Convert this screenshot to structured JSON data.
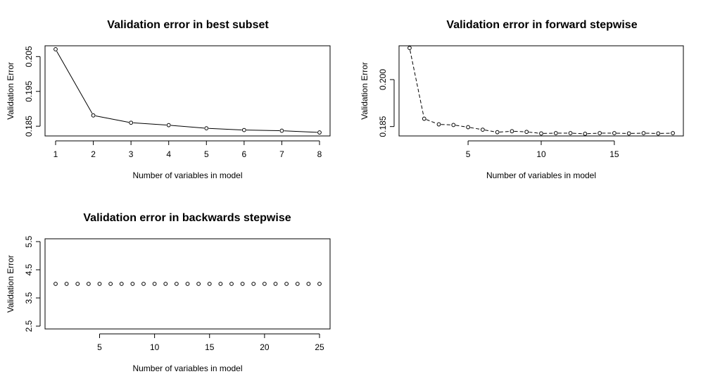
{
  "chart_data": [
    {
      "type": "line",
      "title": "Validation error in best subset",
      "xlabel": "Number of variables in model",
      "ylabel": "Validation Error",
      "x": [
        1,
        2,
        3,
        4,
        5,
        6,
        7,
        8
      ],
      "values": [
        0.2071,
        0.1881,
        0.186,
        0.1853,
        0.1844,
        0.1839,
        0.1837,
        0.1832
      ],
      "xlim": [
        0.72,
        8.28
      ],
      "ylim": [
        0.1822,
        0.2081
      ],
      "xticks": [
        1,
        2,
        3,
        4,
        5,
        6,
        7,
        8
      ],
      "xtick_labels": [
        "1",
        "2",
        "3",
        "4",
        "5",
        "6",
        "7",
        "8"
      ],
      "yticks": [
        0.185,
        0.195,
        0.205
      ],
      "ytick_labels": [
        "0.185",
        "0.195",
        "0.205"
      ],
      "line_style": "solid",
      "grid": false
    },
    {
      "type": "line",
      "title": "Validation error in forward stepwise",
      "xlabel": "Number of variables in model",
      "ylabel": "Validation Error",
      "x": [
        1,
        2,
        3,
        4,
        5,
        6,
        7,
        8,
        9,
        10,
        11,
        12,
        13,
        14,
        15,
        16,
        17,
        18,
        19
      ],
      "values": [
        0.2101,
        0.1875,
        0.1857,
        0.1855,
        0.1848,
        0.184,
        0.1832,
        0.1835,
        0.1833,
        0.1828,
        0.1829,
        0.1829,
        0.1827,
        0.1829,
        0.1829,
        0.1828,
        0.1829,
        0.1828,
        0.1829
      ],
      "xlim": [
        0.28,
        19.72
      ],
      "ylim": [
        0.182,
        0.2108
      ],
      "xticks": [
        5,
        10,
        15
      ],
      "xtick_labels": [
        "5",
        "10",
        "15"
      ],
      "yticks": [
        0.185,
        0.2
      ],
      "ytick_labels": [
        "0.185",
        "0.200"
      ],
      "line_style": "dashed",
      "grid": false
    },
    {
      "type": "scatter",
      "title": "Validation error in backwards stepwise",
      "xlabel": "Number of variables in model",
      "ylabel": "Validation Error",
      "x": [
        1,
        2,
        3,
        4,
        5,
        6,
        7,
        8,
        9,
        10,
        11,
        12,
        13,
        14,
        15,
        16,
        17,
        18,
        19,
        20,
        21,
        22,
        23,
        24,
        25
      ],
      "values": [
        4,
        4,
        4,
        4,
        4,
        4,
        4,
        4,
        4,
        4,
        4,
        4,
        4,
        4,
        4,
        4,
        4,
        4,
        4,
        4,
        4,
        4,
        4,
        4,
        4
      ],
      "xlim": [
        0.04,
        25.96
      ],
      "ylim": [
        2.4,
        5.6
      ],
      "xticks": [
        5,
        10,
        15,
        20,
        25
      ],
      "xtick_labels": [
        "5",
        "10",
        "15",
        "20",
        "25"
      ],
      "yticks": [
        2.5,
        3.5,
        4.5,
        5.5
      ],
      "ytick_labels": [
        "2.5",
        "3.5",
        "4.5",
        "5.5"
      ],
      "grid": false
    }
  ]
}
